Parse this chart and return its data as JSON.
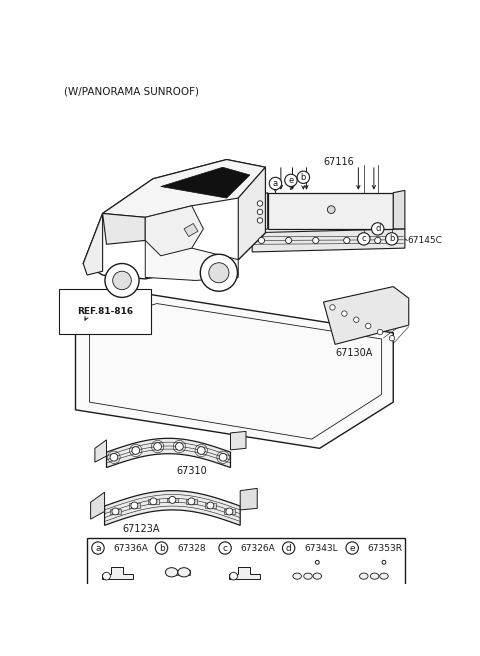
{
  "bg_color": "#ffffff",
  "line_color": "#1a1a1a",
  "title": "(W/PANORAMA SUNROOF)",
  "legend_items": [
    {
      "letter": "a",
      "code": "67336A"
    },
    {
      "letter": "b",
      "code": "67328"
    },
    {
      "letter": "c",
      "code": "67326A"
    },
    {
      "letter": "d",
      "code": "67343L"
    },
    {
      "letter": "e",
      "code": "67353R"
    }
  ]
}
